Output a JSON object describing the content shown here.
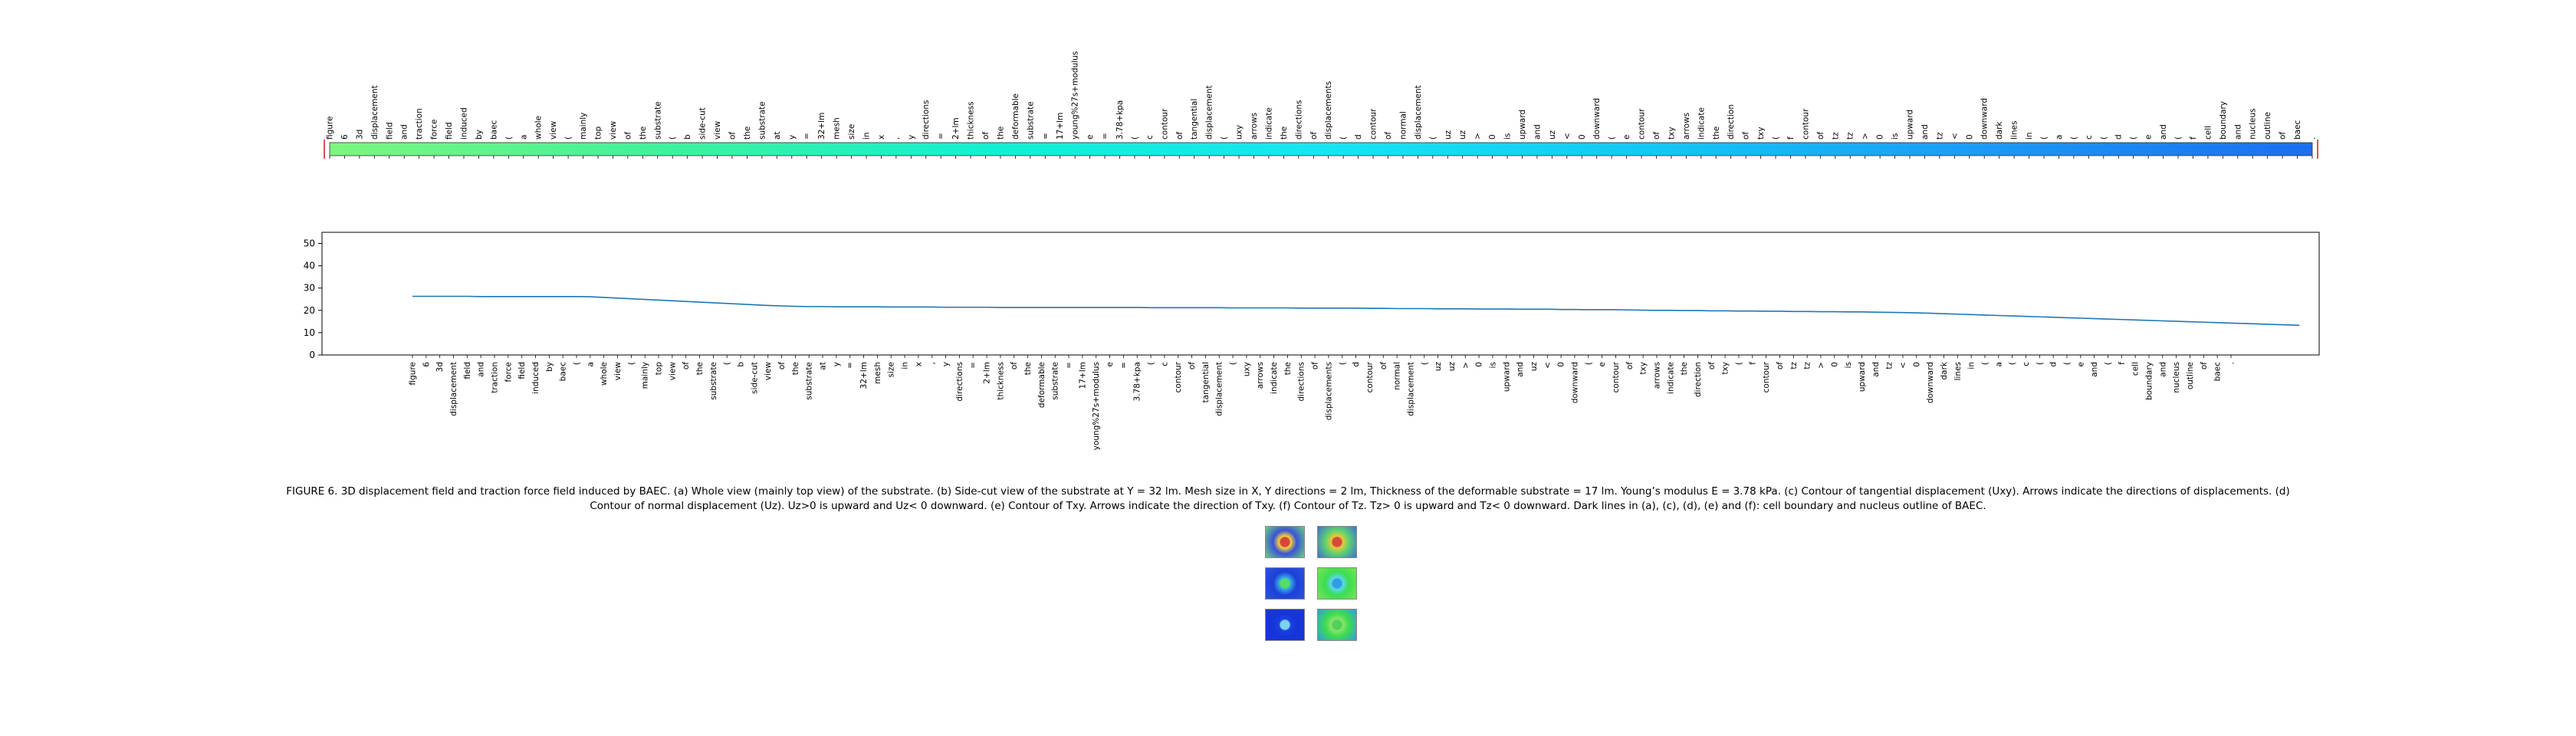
{
  "chart_data": {
    "type": "line",
    "title": "",
    "xlabel": "",
    "ylabel": "",
    "ylim": [
      0,
      55
    ],
    "yticks": [
      0,
      10,
      20,
      30,
      40,
      50
    ],
    "grid": false,
    "tokens": [
      "figure",
      "6",
      "3d",
      "displacement",
      "field",
      "and",
      "traction",
      "force",
      "field",
      "induced",
      "by",
      "baec",
      "(",
      "a",
      "whole",
      "view",
      "(",
      "mainly",
      "top",
      "view",
      "of",
      "the",
      "substrate",
      "(",
      "b",
      "side-cut",
      "view",
      "of",
      "the",
      "substrate",
      "at",
      "y",
      "=",
      "32+lm",
      "mesh",
      "size",
      "in",
      "x",
      ",",
      "y",
      "directions",
      "=",
      "2+lm",
      "thickness",
      "of",
      "the",
      "deformable",
      "substrate",
      "=",
      "17+lm",
      "young%27s+modulus",
      "e",
      "=",
      "3.78+kpa",
      "(",
      "c",
      "contour",
      "of",
      "tangential",
      "displacement",
      "(",
      "uxy",
      "arrows",
      "indicate",
      "the",
      "directions",
      "of",
      "displacements",
      "(",
      "d",
      "contour",
      "of",
      "normal",
      "displacement",
      "(",
      "uz",
      "uz",
      ">",
      "0",
      "is",
      "upward",
      "and",
      "uz",
      "<",
      "0",
      "downward",
      "(",
      "e",
      "contour",
      "of",
      "txy",
      "arrows",
      "indicate",
      "the",
      "direction",
      "of",
      "txy",
      "(",
      "f",
      "contour",
      "of",
      "tz",
      "tz",
      ">",
      "0",
      "is",
      "upward",
      "and",
      "tz",
      "<",
      "0",
      "downward",
      "dark",
      "lines",
      "in",
      "(",
      "a",
      "(",
      "c",
      "(",
      "d",
      "(",
      "e",
      "and",
      "(",
      "f",
      "cell",
      "boundary",
      "and",
      "nucleus",
      "outline",
      "of",
      "baec",
      "."
    ],
    "values": [
      26.3,
      26.3,
      26.3,
      26.3,
      26.3,
      26.2,
      26.2,
      26.2,
      26.2,
      26.2,
      26.2,
      26.2,
      26.2,
      26.1,
      25.8,
      25.5,
      25.2,
      24.9,
      24.6,
      24.3,
      24.0,
      23.7,
      23.4,
      23.1,
      22.8,
      22.5,
      22.2,
      22.0,
      21.8,
      21.7,
      21.7,
      21.6,
      21.6,
      21.6,
      21.6,
      21.5,
      21.5,
      21.5,
      21.5,
      21.4,
      21.4,
      21.4,
      21.4,
      21.3,
      21.3,
      21.3,
      21.3,
      21.3,
      21.3,
      21.3,
      21.3,
      21.3,
      21.3,
      21.3,
      21.2,
      21.2,
      21.2,
      21.2,
      21.2,
      21.2,
      21.1,
      21.1,
      21.1,
      21.1,
      21.1,
      21.0,
      21.0,
      21.0,
      21.0,
      21.0,
      20.9,
      20.9,
      20.8,
      20.8,
      20.8,
      20.7,
      20.7,
      20.7,
      20.6,
      20.6,
      20.6,
      20.5,
      20.5,
      20.5,
      20.4,
      20.4,
      20.3,
      20.3,
      20.3,
      20.2,
      20.1,
      20.0,
      20.0,
      19.9,
      19.9,
      19.8,
      19.8,
      19.7,
      19.7,
      19.6,
      19.6,
      19.5,
      19.5,
      19.4,
      19.4,
      19.3,
      19.3,
      19.2,
      19.1,
      19.0,
      18.9,
      18.7,
      18.5,
      18.3,
      18.1,
      17.9,
      17.7,
      17.5,
      17.3,
      17.1,
      16.9,
      16.7,
      16.5,
      16.3,
      16.1,
      15.9,
      15.7,
      15.5,
      15.3,
      15.1,
      14.9,
      14.7,
      14.5,
      14.3,
      14.1,
      13.9,
      13.7,
      13.5,
      13.3
    ]
  },
  "colorbar": {
    "stops": [
      "#7cf77e",
      "#3ff29b",
      "#12f0d2",
      "#16e6f2",
      "#12c8f5",
      "#1a9bf7",
      "#1a6ff0"
    ],
    "marker_color": "#d62728"
  },
  "caption": "FIGURE 6. 3D displacement field and traction force field induced by BAEC. (a) Whole view (mainly top view) of the substrate. (b) Side-cut view of the substrate at Y = 32 lm. Mesh size in X, Y directions = 2 lm, Thickness of the deformable substrate = 17 lm. Young’s modulus E = 3.78 kPa. (c) Contour of tangential displacement (Uxy). Arrows indicate the directions of displacements. (d) Contour of normal displacement (Uz). Uz>0 is upward and Uz< 0 downward. (e) Contour of Txy. Arrows indicate the direction of Txy. (f) Contour of Tz. Tz> 0 is upward and Tz< 0 downward. Dark lines in (a), (c), (d), (e) and (f): cell boundary and nucleus outline of BAEC.",
  "thumbnails": [
    {
      "name": "panel-a",
      "colors": [
        "#3b53d8",
        "#f3d23a",
        "#d6453a",
        "#67d27e"
      ]
    },
    {
      "name": "panel-b",
      "colors": [
        "#5fd36c",
        "#e6c93a",
        "#d64a3a",
        "#3a6ed8"
      ]
    },
    {
      "name": "panel-c",
      "colors": [
        "#1d3fd6",
        "#35a8e8",
        "#55dd66",
        "#2a55e0"
      ]
    },
    {
      "name": "panel-d",
      "colors": [
        "#3cdd52",
        "#5bd8e6",
        "#2f9de3",
        "#7ae35a"
      ]
    },
    {
      "name": "panel-e",
      "colors": [
        "#1535d8",
        "#1d3fe0",
        "#7ad3f0",
        "#1a36d6"
      ]
    },
    {
      "name": "panel-f",
      "colors": [
        "#3ddc4e",
        "#8ae36c",
        "#4fd15a",
        "#2f9de3"
      ]
    }
  ]
}
